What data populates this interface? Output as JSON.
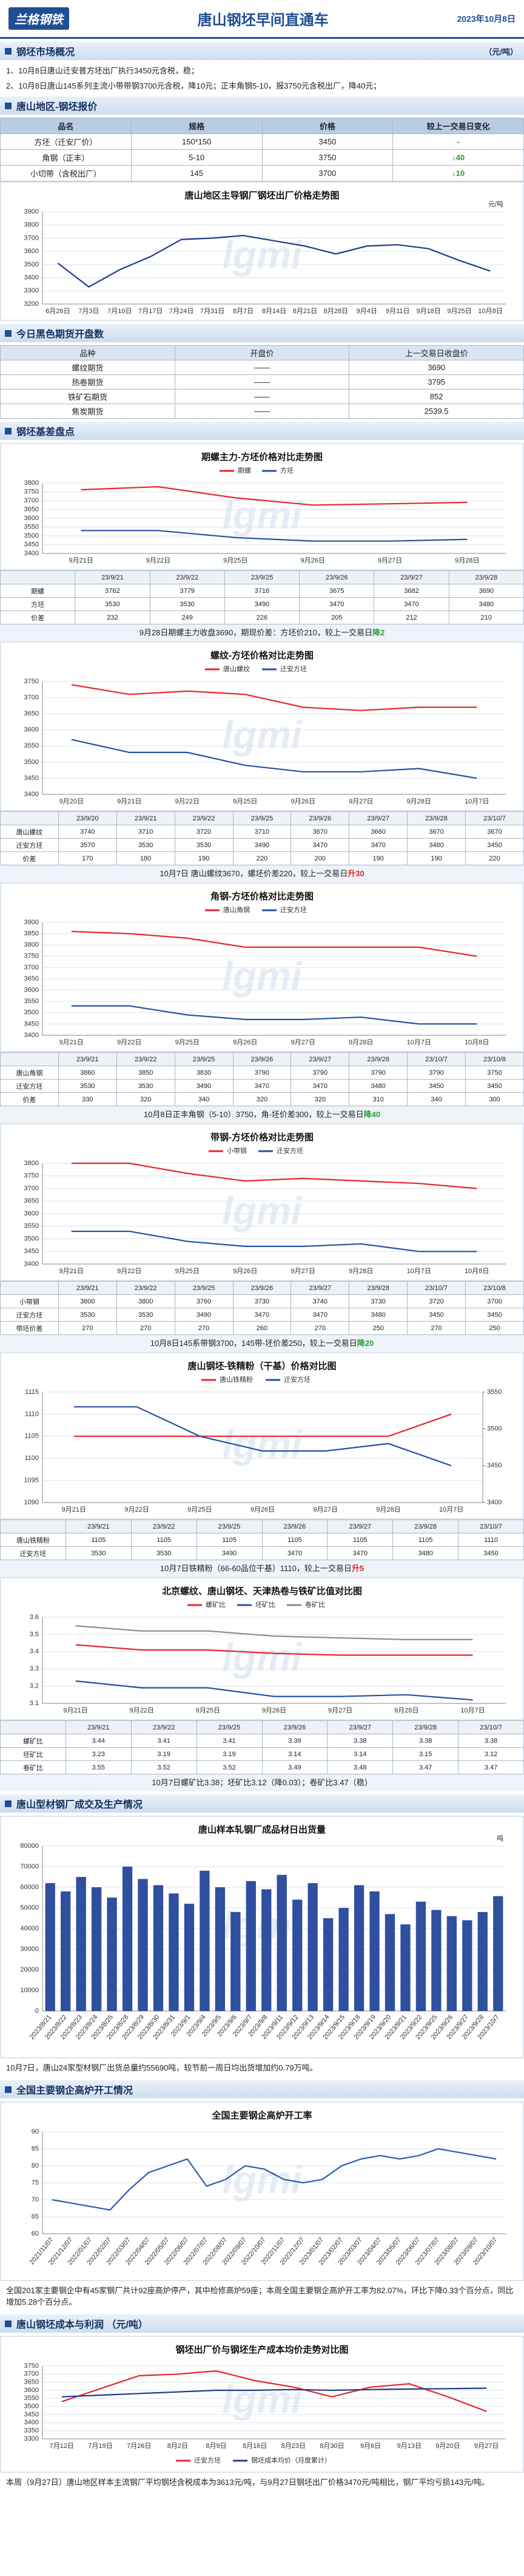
{
  "watermark": "lgmi",
  "header": {
    "logo": "兰格钢铁",
    "title": "唐山钢坯早间直通车",
    "date": "2023年10月8日"
  },
  "overview": {
    "heading": "钢坯市场概况",
    "unit": "（元/吨）",
    "lines": [
      "1、10月8日唐山迁安普方坯出厂执行3450元含税，稳；",
      "2、10月8日唐山145系列主流小带带钢3700元含税，降10元；正丰角钢5-10，报3750元含税出厂，降40元；"
    ]
  },
  "quote": {
    "heading": "唐山地区-钢坯报价",
    "table": {
      "columns": [
        "品名",
        "规格",
        "价格",
        "较上一交易日变化"
      ],
      "rows": [
        [
          "方坯（迁安厂价）",
          "150*150",
          3450,
          "-"
        ],
        [
          "角钢（正丰）",
          "5-10",
          3750,
          {
            "text": "↓40",
            "color": "#2e9e3e"
          }
        ],
        [
          "小切带（含税出厂）",
          "145",
          3700,
          {
            "text": "↓10",
            "color": "#2e9e3e"
          }
        ]
      ]
    },
    "chart": {
      "type": "line",
      "title": "唐山地区主导钢厂钢坯出厂价格走势图",
      "unit": "元/吨",
      "categories": [
        "6月26日",
        "7月3日",
        "7月10日",
        "7月17日",
        "7月24日",
        "7月31日",
        "8月7日",
        "8月14日",
        "8月21日",
        "8月28日",
        "9月4日",
        "9月11日",
        "9月18日",
        "9月25日",
        "10月8日"
      ],
      "series": [
        {
          "color": "#1f3b8c",
          "values": [
            3510,
            3330,
            3460,
            3560,
            3690,
            3700,
            3720,
            3680,
            3640,
            3580,
            3640,
            3650,
            3620,
            3530,
            3450
          ]
        }
      ],
      "ylim": [
        3200,
        3900
      ],
      "yticks": [
        3200,
        3300,
        3400,
        3500,
        3600,
        3700,
        3800,
        3900
      ],
      "grid": true
    }
  },
  "futures": {
    "heading": "今日黑色期货开盘数",
    "table": {
      "columns": [
        "品种",
        "开盘价",
        "上一交易日收盘价"
      ],
      "rows": [
        [
          "螺纹期货",
          "——",
          3690
        ],
        [
          "热卷期货",
          "——",
          3795
        ],
        [
          "铁矿石期货",
          "——",
          852
        ],
        [
          "焦炭期货",
          "——",
          2539.5
        ]
      ]
    }
  },
  "basis": {
    "heading": "钢坯基差盘点",
    "charts": [
      {
        "type": "line",
        "title": "期螺主力-方坯价格对比走势图",
        "legend": "top",
        "categories": [
          "9月21日",
          "9月22日",
          "9月25日",
          "9月26日",
          "9月27日",
          "9月28日"
        ],
        "columns": [
          "23/9/21",
          "23/9/22",
          "23/9/25",
          "23/9/26",
          "23/9/27",
          "23/9/28"
        ],
        "series": [
          {
            "name": "期螺",
            "color": "#e8262b",
            "values": [
              3762,
              3779,
              3716,
              3675,
              3682,
              3690
            ]
          },
          {
            "name": "方坯",
            "color": "#2452a3",
            "values": [
              3530,
              3530,
              3490,
              3470,
              3470,
              3480
            ]
          }
        ],
        "extra_rows": [
          {
            "name": "价差",
            "values": [
              232,
              249,
              226,
              205,
              212,
              210
            ]
          }
        ],
        "ylim": [
          3400,
          3800
        ],
        "yticks": [
          3400,
          3450,
          3500,
          3550,
          3600,
          3650,
          3700,
          3750,
          3800
        ],
        "grid": true,
        "caption": [
          {
            "text": "9月28日期螺主力收盘3690，期现价差：方坯价210，较上一交易日"
          },
          {
            "text": "降2",
            "color": "#2e9e3e"
          }
        ]
      },
      {
        "type": "line",
        "title": "螺纹-方坯价格对比走势图",
        "legend": "top",
        "categories": [
          "9月20日",
          "9月21日",
          "9月22日",
          "9月25日",
          "9月26日",
          "9月27日",
          "9月28日",
          "10月7日"
        ],
        "columns": [
          "23/9/20",
          "23/9/21",
          "23/9/22",
          "23/9/25",
          "23/9/26",
          "23/9/27",
          "23/9/28",
          "23/10/7"
        ],
        "series": [
          {
            "name": "唐山螺纹",
            "color": "#e8262b",
            "values": [
              3740,
              3710,
              3720,
              3710,
              3670,
              3660,
              3670,
              3670
            ]
          },
          {
            "name": "迁安方坯",
            "color": "#2452a3",
            "values": [
              3570,
              3530,
              3530,
              3490,
              3470,
              3470,
              3480,
              3450
            ]
          }
        ],
        "extra_rows": [
          {
            "name": "价差",
            "values": [
              170,
              180,
              190,
              220,
              200,
              190,
              190,
              220
            ]
          }
        ],
        "ylim": [
          3400,
          3750
        ],
        "yticks": [
          3400,
          3450,
          3500,
          3550,
          3600,
          3650,
          3700,
          3750
        ],
        "grid": true,
        "caption": [
          {
            "text": "10月7日 唐山螺纹3670，螺坯价差220，较上一交易日"
          },
          {
            "text": "升30",
            "color": "#e8262b"
          }
        ]
      },
      {
        "type": "line",
        "title": "角钢-方坯价格对比走势图",
        "legend": "top",
        "categories": [
          "9月21日",
          "9月22日",
          "9月25日",
          "9月26日",
          "9月27日",
          "9月28日",
          "10月7日",
          "10月8日"
        ],
        "columns": [
          "23/9/21",
          "23/9/22",
          "23/9/25",
          "23/9/26",
          "23/9/27",
          "23/9/28",
          "23/10/7",
          "23/10/8"
        ],
        "series": [
          {
            "name": "唐山角钢",
            "color": "#e8262b",
            "values": [
              3860,
              3850,
              3830,
              3790,
              3790,
              3790,
              3790,
              3750
            ]
          },
          {
            "name": "迁安方坯",
            "color": "#2452a3",
            "values": [
              3530,
              3530,
              3490,
              3470,
              3470,
              3480,
              3450,
              3450
            ]
          }
        ],
        "extra_rows": [
          {
            "name": "价差",
            "values": [
              330,
              320,
              340,
              320,
              320,
              310,
              340,
              300
            ]
          }
        ],
        "ylim": [
          3400,
          3900
        ],
        "yticks": [
          3400,
          3450,
          3500,
          3550,
          3600,
          3650,
          3700,
          3750,
          3800,
          3850,
          3900
        ],
        "grid": true,
        "caption": [
          {
            "text": "10月8日正丰角钢（5-10）3750，角-坯价差300，较上一交易日"
          },
          {
            "text": "降40",
            "color": "#2e9e3e"
          }
        ]
      },
      {
        "type": "line",
        "title": "带钢-方坯价格对比走势图",
        "legend": "top",
        "categories": [
          "9月21日",
          "9月22日",
          "9月25日",
          "9月26日",
          "9月27日",
          "9月28日",
          "10月7日",
          "10月8日"
        ],
        "columns": [
          "23/9/21",
          "23/9/22",
          "23/9/25",
          "23/9/26",
          "23/9/27",
          "23/9/28",
          "23/10/7",
          "23/10/8"
        ],
        "series": [
          {
            "name": "小带钢",
            "color": "#e8262b",
            "values": [
              3800,
              3800,
              3760,
              3730,
              3740,
              3730,
              3720,
              3700
            ]
          },
          {
            "name": "迁安方坯",
            "color": "#2452a3",
            "values": [
              3530,
              3530,
              3490,
              3470,
              3470,
              3480,
              3450,
              3450
            ]
          }
        ],
        "extra_rows": [
          {
            "name": "带坯价差",
            "values": [
              270,
              270,
              270,
              260,
              270,
              250,
              270,
              250
            ]
          }
        ],
        "ylim": [
          3400,
          3800
        ],
        "yticks": [
          3400,
          3450,
          3500,
          3550,
          3600,
          3650,
          3700,
          3750,
          3800
        ],
        "grid": true,
        "caption": [
          {
            "text": "10月8日145系带钢3700，145带-坯价差250，较上一交易日"
          },
          {
            "text": "降20",
            "color": "#2e9e3e"
          }
        ]
      },
      {
        "type": "line",
        "title": "唐山钢坯-铁精粉（干基）价格对比图",
        "legend": "top",
        "categories": [
          "9月21日",
          "9月22日",
          "9月25日",
          "9月26日",
          "9月27日",
          "9月28日",
          "10月7日"
        ],
        "columns": [
          "23/9/21",
          "23/9/22",
          "23/9/25",
          "23/9/26",
          "23/9/27",
          "23/9/28",
          "23/10/7"
        ],
        "series": [
          {
            "name": "唐山铁精粉",
            "color": "#e8262b",
            "values": [
              1105,
              1105,
              1105,
              1105,
              1105,
              1105,
              1110
            ]
          },
          {
            "name": "迁安方坯",
            "color": "#2452a3",
            "axis": "y2",
            "values": [
              3530,
              3530,
              3490,
              3470,
              3470,
              3480,
              3450
            ]
          }
        ],
        "ylim": [
          1090,
          1115
        ],
        "yticks": [
          1090,
          1095,
          1100,
          1105,
          1110,
          1115
        ],
        "y2lim": [
          3400,
          3550
        ],
        "y2ticks": [
          3400,
          3450,
          3500,
          3550
        ],
        "grid": true,
        "caption": [
          {
            "text": "10月7日铁精粉（66-60品位干基）1110，较上一交易日"
          },
          {
            "text": "升5",
            "color": "#e8262b"
          }
        ]
      },
      {
        "type": "line",
        "title": "北京螺纹、唐山钢坯、天津热卷与铁矿比值对比图",
        "legend": "top",
        "categories": [
          "9月21日",
          "9月22日",
          "9月25日",
          "9月26日",
          "9月27日",
          "9月28日",
          "10月7日"
        ],
        "columns": [
          "23/9/21",
          "23/9/22",
          "23/9/25",
          "23/9/26",
          "23/9/27",
          "23/9/28",
          "23/10/7"
        ],
        "series": [
          {
            "name": "螺矿比",
            "color": "#e8262b",
            "values": [
              3.44,
              3.41,
              3.41,
              3.39,
              3.38,
              3.38,
              3.38
            ]
          },
          {
            "name": "坯矿比",
            "color": "#2452a3",
            "values": [
              3.23,
              3.19,
              3.19,
              3.14,
              3.14,
              3.15,
              3.12
            ]
          },
          {
            "name": "卷矿比",
            "color": "#8c8c8c",
            "values": [
              3.55,
              3.52,
              3.52,
              3.49,
              3.48,
              3.47,
              3.47
            ]
          }
        ],
        "ylim": [
          3.1,
          3.6
        ],
        "yticks": [
          3.1,
          3.2,
          3.3,
          3.4,
          3.5,
          3.6
        ],
        "grid": true,
        "caption": [
          {
            "text": "10月7日螺矿比3.38；坯矿比3.12（降0.03）；卷矿比3.47（稳）"
          }
        ]
      }
    ]
  },
  "mill": {
    "heading": "唐山型材钢厂成交及生产情况",
    "chart": {
      "type": "bar",
      "title": "唐山样本轧钢厂成品材日出货量",
      "unit": "吨",
      "color": "#2f4f9f",
      "categories": [
        "2023/8/21",
        "2023/8/22",
        "2023/8/23",
        "2023/8/24",
        "2023/8/25",
        "2023/8/28",
        "2023/8/29",
        "2023/8/30",
        "2023/8/31",
        "2023/9/1",
        "2023/9/4",
        "2023/9/5",
        "2023/9/6",
        "2023/9/7",
        "2023/9/8",
        "2023/9/11",
        "2023/9/12",
        "2023/9/13",
        "2023/9/14",
        "2023/9/15",
        "2023/9/18",
        "2023/9/19",
        "2023/9/20",
        "2023/9/21",
        "2023/9/22",
        "2023/9/25",
        "2023/9/26",
        "2023/9/27",
        "2023/9/28",
        "2023/10/7"
      ],
      "values": [
        62000,
        58000,
        65000,
        60000,
        55000,
        70000,
        64000,
        61000,
        57000,
        52000,
        68000,
        60000,
        48000,
        63000,
        59000,
        66000,
        54000,
        62000,
        45000,
        50000,
        61000,
        58000,
        47000,
        42000,
        53000,
        49000,
        46000,
        44000,
        48000,
        55690
      ],
      "ylim": [
        0,
        80000
      ],
      "yticks": [
        0,
        10000,
        20000,
        30000,
        40000,
        50000,
        60000,
        70000,
        80000
      ],
      "grid": true
    },
    "note": "10月7日，唐山24家型材钢厂出货总量约55690吨，较节前一周日均出货增加约0.79万吨。"
  },
  "furnace": {
    "heading": "全国主要钢企高炉开工情况",
    "chart": {
      "type": "line",
      "title": "全国主要钢企高炉开工率",
      "categories": [
        "2021/11/07",
        "2021/12/07",
        "2022/01/07",
        "2022/02/07",
        "2022/03/07",
        "2022/04/07",
        "2022/05/07",
        "2022/06/07",
        "2022/07/07",
        "2022/08/07",
        "2022/09/07",
        "2022/10/07",
        "2022/11/07",
        "2022/12/07",
        "2023/01/07",
        "2023/02/07",
        "2023/03/07",
        "2023/04/07",
        "2023/05/07",
        "2023/06/07",
        "2023/07/07",
        "2023/08/07",
        "2023/09/07",
        "2023/10/07"
      ],
      "series": [
        {
          "color": "#2a5caa",
          "values": [
            70,
            69,
            68,
            67,
            73,
            78,
            80,
            82,
            74,
            76,
            80,
            79,
            76,
            75,
            76,
            80,
            82,
            83,
            82,
            83,
            85,
            84,
            83,
            82
          ]
        }
      ],
      "ylim": [
        60,
        90
      ],
      "yticks": [
        60,
        65,
        70,
        75,
        80,
        85,
        90
      ],
      "grid": true
    },
    "note": "全国201家主要钢企中有45家钢厂共计92座高炉停产，其中检修高炉59座；本周全国主要钢企高炉开工率为82.07%，环比下降0.33个百分点，同比增加5.28个百分点。"
  },
  "cost": {
    "heading": "唐山钢坯成本与利润 （元/吨）",
    "chart": {
      "type": "line",
      "title": "钢坯出厂价与钢坯生产成本均价走势对比图",
      "legend": "bottom",
      "categories": [
        "7月12日",
        "7月19日",
        "7月26日",
        "8月2日",
        "8月9日",
        "8月16日",
        "8月23日",
        "8月30日",
        "9月6日",
        "9月13日",
        "9月20日",
        "9月27日"
      ],
      "series": [
        {
          "name": "迁安方坯",
          "color": "#e8262b",
          "values": [
            3530,
            3610,
            3690,
            3700,
            3720,
            3660,
            3620,
            3560,
            3620,
            3640,
            3560,
            3470
          ]
        },
        {
          "name": "钢坯成本均价（月度累计）",
          "color": "#1f3b8c",
          "values": [
            3560,
            3570,
            3580,
            3590,
            3600,
            3600,
            3605,
            3600,
            3605,
            3608,
            3610,
            3613
          ]
        }
      ],
      "ylim": [
        3300,
        3750
      ],
      "yticks": [
        3300,
        3350,
        3400,
        3450,
        3500,
        3550,
        3600,
        3650,
        3700,
        3750
      ],
      "grid": true
    },
    "note": "本周（9月27日）唐山地区样本主流钢厂平均钢坯含税成本为3613元/吨，与9月27日钢坯出厂价格3470元/吨相比，钢厂平均亏损143元/吨。"
  }
}
